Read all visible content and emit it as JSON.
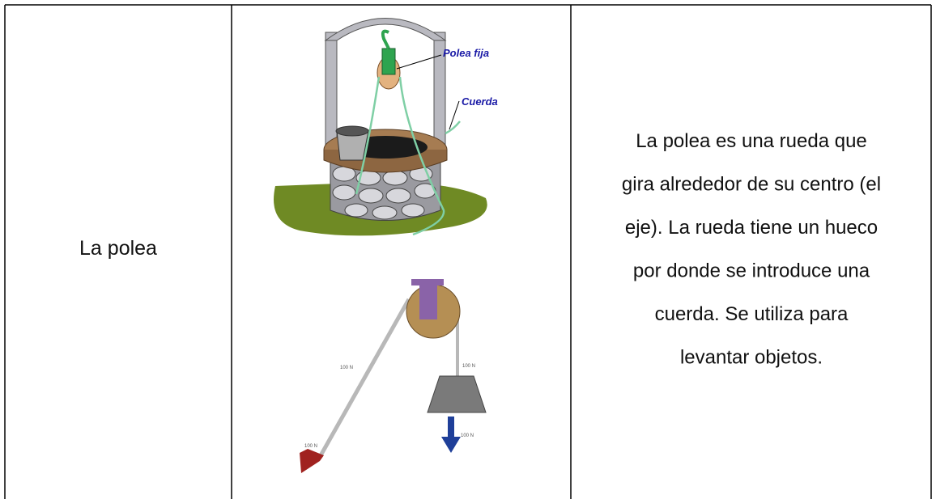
{
  "table": {
    "label": "La polea",
    "figures": {
      "well": {
        "labels": [
          "Polea fija",
          "Cuerda"
        ]
      },
      "pulley": {
        "labels": [
          "100 N",
          "100 N",
          "100 N",
          "100 N"
        ]
      }
    },
    "description": [
      "La polea es una rueda que",
      "gira alrededor de su centro (el",
      "eje). La rueda tiene un hueco",
      "por donde se introduce una",
      "cuerda. Se utiliza para",
      "levantar objetos."
    ]
  }
}
